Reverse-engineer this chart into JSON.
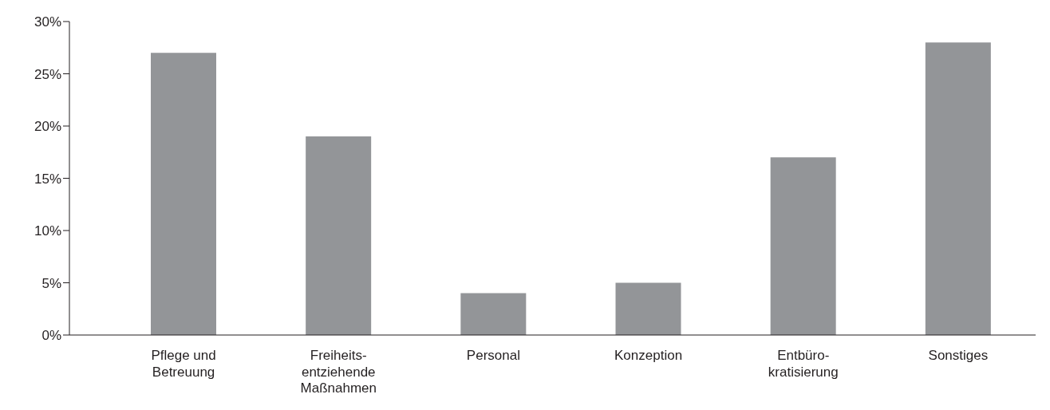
{
  "chart_data": {
    "type": "bar",
    "categories": [
      "Pflege und\nBetreuung",
      "Freiheits-\nentziehende\nMaßnahmen",
      "Personal",
      "Konzeption",
      "Entbüro-\nkratisierung",
      "Sonstiges"
    ],
    "values": [
      27,
      19,
      4,
      5,
      17,
      28
    ],
    "color": "#939598",
    "ylim": [
      0,
      30
    ],
    "yticks": [
      {
        "value": 0,
        "label": "0%"
      },
      {
        "value": 5,
        "label": "5%"
      },
      {
        "value": 10,
        "label": "10%"
      },
      {
        "value": 15,
        "label": "15%"
      },
      {
        "value": 20,
        "label": "20%"
      },
      {
        "value": 25,
        "label": "25%"
      },
      {
        "value": 30,
        "label": "30%"
      }
    ],
    "grid": false
  }
}
